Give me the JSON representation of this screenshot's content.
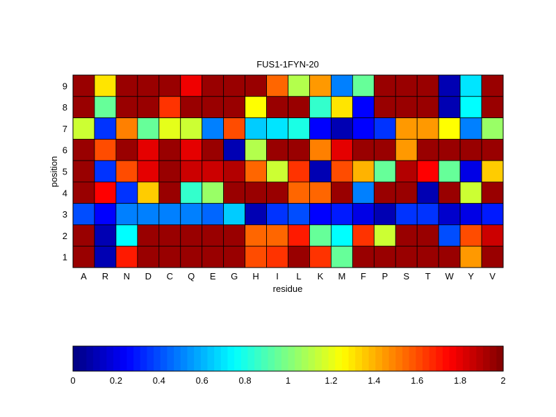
{
  "chart_data": {
    "type": "heatmap",
    "title": "FUS1-1FYN-20",
    "xlabel": "residue",
    "ylabel": "position",
    "x": [
      "A",
      "R",
      "N",
      "D",
      "C",
      "Q",
      "E",
      "G",
      "H",
      "I",
      "L",
      "K",
      "M",
      "F",
      "P",
      "S",
      "T",
      "W",
      "Y",
      "V"
    ],
    "y": [
      "9",
      "8",
      "7",
      "6",
      "5",
      "4",
      "3",
      "2",
      "1"
    ],
    "colormap": "jet",
    "clim": [
      0,
      2
    ],
    "values": [
      [
        1.95,
        1.3,
        1.95,
        1.95,
        1.95,
        1.78,
        1.95,
        1.95,
        1.95,
        1.55,
        1.1,
        1.45,
        0.5,
        0.95,
        1.95,
        1.95,
        1.95,
        0.1,
        0.7,
        1.95
      ],
      [
        1.95,
        0.95,
        1.95,
        1.95,
        1.65,
        1.95,
        1.95,
        1.95,
        1.25,
        1.95,
        1.95,
        0.85,
        1.3,
        0.25,
        1.95,
        1.95,
        1.95,
        0.1,
        0.75,
        1.95
      ],
      [
        1.15,
        0.35,
        1.5,
        0.95,
        1.2,
        1.15,
        0.5,
        1.6,
        0.65,
        0.7,
        0.8,
        0.25,
        0.1,
        0.25,
        0.35,
        1.45,
        1.45,
        1.25,
        0.5,
        1.05
      ],
      [
        1.95,
        1.6,
        1.95,
        1.8,
        1.95,
        1.8,
        1.95,
        0.1,
        1.1,
        1.95,
        1.95,
        1.5,
        1.8,
        1.95,
        1.95,
        1.45,
        1.95,
        1.95,
        1.95,
        1.95
      ],
      [
        1.95,
        0.35,
        1.6,
        1.8,
        1.95,
        1.85,
        1.85,
        1.9,
        1.55,
        1.15,
        1.65,
        0.1,
        1.6,
        1.4,
        0.95,
        1.9,
        1.75,
        0.95,
        0.2,
        1.35
      ],
      [
        1.95,
        1.75,
        0.35,
        1.35,
        1.95,
        0.85,
        1.05,
        1.95,
        1.95,
        1.95,
        1.55,
        1.55,
        1.95,
        0.5,
        1.95,
        1.95,
        0.1,
        1.95,
        1.15,
        1.95
      ],
      [
        0.4,
        0.25,
        0.5,
        0.5,
        0.5,
        0.5,
        0.45,
        0.65,
        0.1,
        0.35,
        0.4,
        0.25,
        0.3,
        0.2,
        0.1,
        0.35,
        0.35,
        0.15,
        0.2,
        0.3
      ],
      [
        1.95,
        0.1,
        0.75,
        1.95,
        1.95,
        1.95,
        1.95,
        1.95,
        1.55,
        1.55,
        1.7,
        0.95,
        0.75,
        1.65,
        1.15,
        1.95,
        1.95,
        0.4,
        1.6,
        1.85
      ],
      [
        1.95,
        0.1,
        1.7,
        1.95,
        1.95,
        1.95,
        1.95,
        1.95,
        1.6,
        1.65,
        1.95,
        1.65,
        0.95,
        1.95,
        1.95,
        1.95,
        1.95,
        1.95,
        1.45,
        1.95
      ]
    ],
    "colorbar_ticks": [
      "0",
      "0.2",
      "0.4",
      "0.6",
      "0.8",
      "1",
      "1.2",
      "1.4",
      "1.6",
      "1.8",
      "2"
    ]
  }
}
